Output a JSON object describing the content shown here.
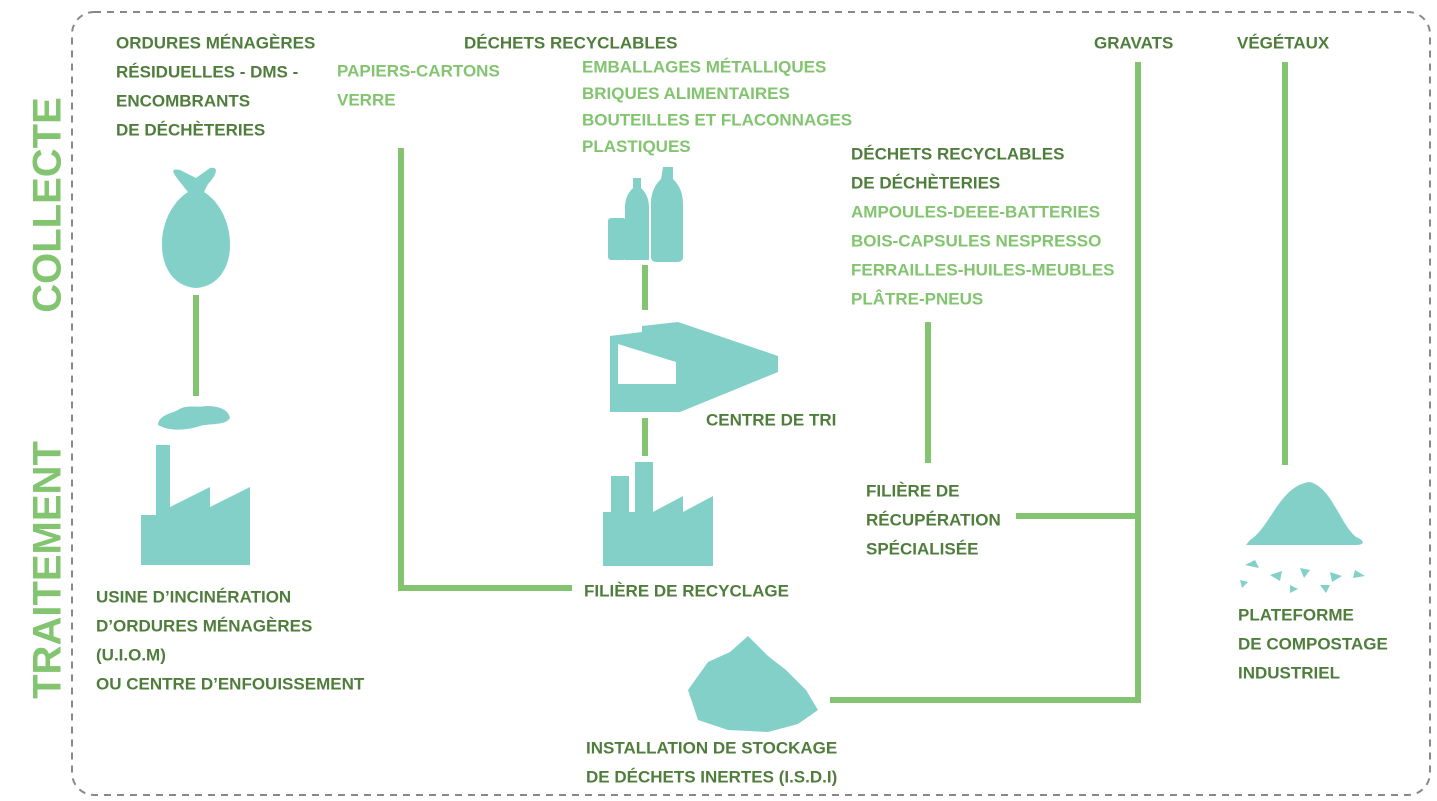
{
  "side_labels": {
    "collecte": "COLLECTE",
    "traitement": "TRAITEMENT"
  },
  "collecte": {
    "omr": [
      "ORDURES MÉNAGÈRES",
      "RÉSIDUELLES - DMS -",
      "ENCOMBRANTS",
      "DE DÉCHÈTERIES"
    ],
    "recyclables": {
      "title": "DÉCHETS RECYCLABLES",
      "group1": [
        "PAPIERS-CARTONS",
        "VERRE"
      ],
      "group2": [
        "EMBALLAGES MÉTALLIQUES",
        "BRIQUES ALIMENTAIRES",
        "BOUTEILLES ET FLACONNAGES",
        "PLASTIQUES"
      ]
    },
    "decheteries": {
      "title": [
        "DÉCHETS RECYCLABLES",
        "DE DÉCHÈTERIES"
      ],
      "items": [
        "AMPOULES-DEEE-BATTERIES",
        "BOIS-CAPSULES NESPRESSO",
        "FERRAILLES-HUILES-MEUBLES",
        "PLÂTRE-PNEUS"
      ]
    },
    "gravats": "GRAVATS",
    "vegetaux": "VÉGÉTAUX"
  },
  "traitement": {
    "centre_tri": "CENTRE DE TRI",
    "uiom": [
      "USINE D’INCINÉRATION",
      "D’ORDURES MÉNAGÈRES",
      "(U.I.O.M)",
      "OU CENTRE D’ENFOUISSEMENT"
    ],
    "recyclage": "FILIÈRE DE RECYCLAGE",
    "recuperation": [
      "FILIÈRE DE",
      "RÉCUPÉRATION",
      "SPÉCIALISÉE"
    ],
    "isdi": [
      "INSTALLATION DE STOCKAGE",
      "DE DÉCHETS INERTES (I.S.D.I)"
    ],
    "compostage": [
      "PLATEFORME",
      "DE COMPOSTAGE",
      "INDUSTRIEL"
    ]
  }
}
